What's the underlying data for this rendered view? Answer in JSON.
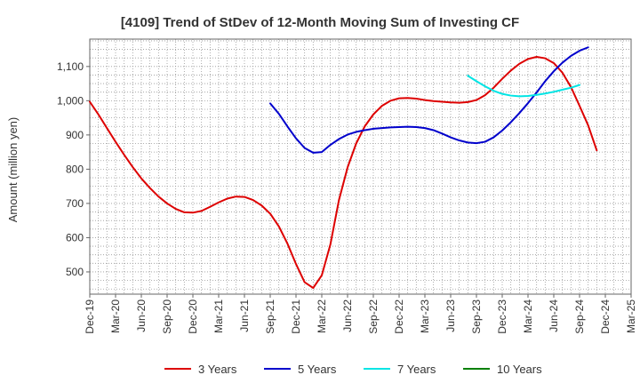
{
  "chart_data": {
    "type": "line",
    "title": "[4109]  Trend of StDev of 12-Month Moving Sum of Investing CF",
    "ylabel": "Amount (million yen)",
    "xlabel": "",
    "ylim": [
      435,
      1180
    ],
    "yticks": [
      500,
      600,
      700,
      800,
      900,
      1000,
      1100
    ],
    "ytick_labels": [
      "500",
      "600",
      "700",
      "800",
      "900",
      "1,000",
      "1,100"
    ],
    "x_tick_labels": [
      "Dec-19",
      "Mar-20",
      "Jun-20",
      "Sep-20",
      "Dec-20",
      "Mar-21",
      "Jun-21",
      "Sep-21",
      "Dec-21",
      "Mar-22",
      "Jun-22",
      "Sep-22",
      "Dec-22",
      "Mar-23",
      "Jun-23",
      "Sep-23",
      "Dec-23",
      "Mar-24",
      "Jun-24",
      "Sep-24",
      "Dec-24",
      "Mar-25"
    ],
    "grid": true,
    "legend_position": "bottom",
    "series": [
      {
        "name": "3 Years",
        "color": "#dd0000",
        "points": [
          [
            "Dec-19",
            997
          ],
          [
            "Jan-20",
            960
          ],
          [
            "Feb-20",
            920
          ],
          [
            "Mar-20",
            880
          ],
          [
            "Apr-20",
            842
          ],
          [
            "May-20",
            806
          ],
          [
            "Jun-20",
            773
          ],
          [
            "Jul-20",
            745
          ],
          [
            "Aug-20",
            720
          ],
          [
            "Sep-20",
            700
          ],
          [
            "Oct-20",
            684
          ],
          [
            "Nov-20",
            674
          ],
          [
            "Dec-20",
            673
          ],
          [
            "Jan-21",
            678
          ],
          [
            "Feb-21",
            690
          ],
          [
            "Mar-21",
            703
          ],
          [
            "Apr-21",
            714
          ],
          [
            "May-21",
            720
          ],
          [
            "Jun-21",
            719
          ],
          [
            "Jul-21",
            710
          ],
          [
            "Aug-21",
            694
          ],
          [
            "Sep-21",
            670
          ],
          [
            "Oct-21",
            633
          ],
          [
            "Nov-21",
            583
          ],
          [
            "Dec-21",
            523
          ],
          [
            "Jan-22",
            470
          ],
          [
            "Feb-22",
            453
          ],
          [
            "Mar-22",
            490
          ],
          [
            "Apr-22",
            580
          ],
          [
            "May-22",
            710
          ],
          [
            "Jun-22",
            805
          ],
          [
            "Jul-22",
            875
          ],
          [
            "Aug-22",
            925
          ],
          [
            "Sep-22",
            960
          ],
          [
            "Oct-22",
            985
          ],
          [
            "Nov-22",
            1000
          ],
          [
            "Dec-22",
            1007
          ],
          [
            "Jan-23",
            1008
          ],
          [
            "Feb-23",
            1006
          ],
          [
            "Mar-23",
            1002
          ],
          [
            "Apr-23",
            999
          ],
          [
            "May-23",
            997
          ],
          [
            "Jun-23",
            995
          ],
          [
            "Jul-23",
            994
          ],
          [
            "Aug-23",
            996
          ],
          [
            "Sep-23",
            1002
          ],
          [
            "Oct-23",
            1016
          ],
          [
            "Nov-23",
            1038
          ],
          [
            "Dec-23",
            1064
          ],
          [
            "Jan-24",
            1088
          ],
          [
            "Feb-24",
            1108
          ],
          [
            "Mar-24",
            1122
          ],
          [
            "Apr-24",
            1128
          ],
          [
            "May-24",
            1124
          ],
          [
            "Jun-24",
            1110
          ],
          [
            "Jul-24",
            1082
          ],
          [
            "Aug-24",
            1040
          ],
          [
            "Sep-24",
            985
          ],
          [
            "Oct-24",
            928
          ],
          [
            "Nov-24",
            855
          ]
        ]
      },
      {
        "name": "5 Years",
        "color": "#0000cc",
        "points": [
          [
            "Sep-21",
            992
          ],
          [
            "Oct-21",
            962
          ],
          [
            "Nov-21",
            925
          ],
          [
            "Dec-21",
            890
          ],
          [
            "Jan-22",
            862
          ],
          [
            "Feb-22",
            848
          ],
          [
            "Mar-22",
            850
          ],
          [
            "Apr-22",
            871
          ],
          [
            "May-22",
            888
          ],
          [
            "Jun-22",
            901
          ],
          [
            "Jul-22",
            909
          ],
          [
            "Aug-22",
            914
          ],
          [
            "Sep-22",
            918
          ],
          [
            "Oct-22",
            920
          ],
          [
            "Nov-22",
            922
          ],
          [
            "Dec-22",
            923
          ],
          [
            "Jan-23",
            924
          ],
          [
            "Feb-23",
            923
          ],
          [
            "Mar-23",
            920
          ],
          [
            "Apr-23",
            914
          ],
          [
            "May-23",
            904
          ],
          [
            "Jun-23",
            893
          ],
          [
            "Jul-23",
            884
          ],
          [
            "Aug-23",
            878
          ],
          [
            "Sep-23",
            876
          ],
          [
            "Oct-23",
            880
          ],
          [
            "Nov-23",
            893
          ],
          [
            "Dec-23",
            913
          ],
          [
            "Jan-24",
            937
          ],
          [
            "Feb-24",
            964
          ],
          [
            "Mar-24",
            993
          ],
          [
            "Apr-24",
            1024
          ],
          [
            "May-24",
            1057
          ],
          [
            "Jun-24",
            1086
          ],
          [
            "Jul-24",
            1111
          ],
          [
            "Aug-24",
            1131
          ],
          [
            "Sep-24",
            1146
          ],
          [
            "Oct-24",
            1156
          ]
        ]
      },
      {
        "name": "7 Years",
        "color": "#00e5e5",
        "points": [
          [
            "Aug-23",
            1073
          ],
          [
            "Sep-23",
            1057
          ],
          [
            "Oct-23",
            1042
          ],
          [
            "Nov-23",
            1029
          ],
          [
            "Dec-23",
            1020
          ],
          [
            "Jan-24",
            1015
          ],
          [
            "Feb-24",
            1013
          ],
          [
            "Mar-24",
            1014
          ],
          [
            "Apr-24",
            1017
          ],
          [
            "May-24",
            1021
          ],
          [
            "Jun-24",
            1026
          ],
          [
            "Jul-24",
            1032
          ],
          [
            "Aug-24",
            1038
          ],
          [
            "Sep-24",
            1046
          ]
        ]
      },
      {
        "name": "10 Years",
        "color": "#008000",
        "points": []
      }
    ]
  }
}
